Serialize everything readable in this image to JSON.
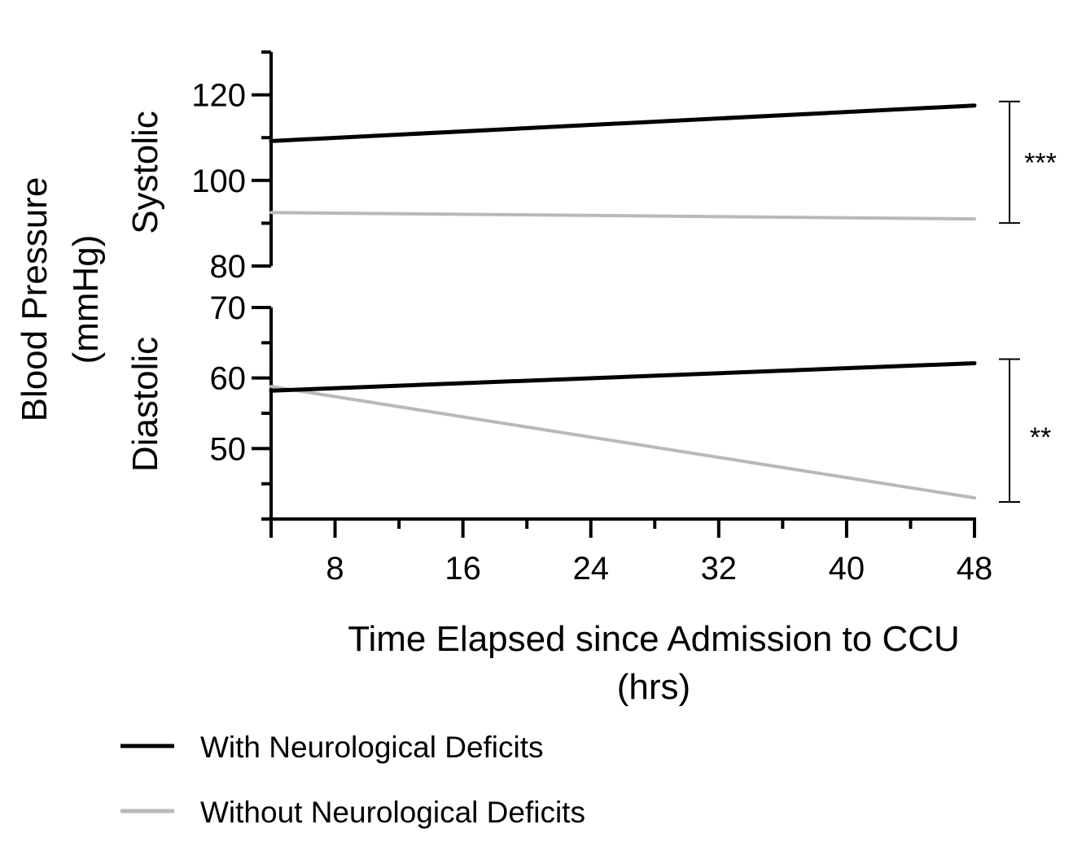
{
  "chart_data": {
    "type": "line",
    "xlabel_line1": "Time Elapsed since Admission to CCU",
    "xlabel_line2": "(hrs)",
    "ylabel_line1": "Blood Pressure",
    "ylabel_line2": "(mmHg)",
    "xlim": [
      4,
      48
    ],
    "x_ticks": [
      8,
      16,
      24,
      32,
      40,
      48
    ],
    "x_tick_labels": [
      "8",
      "16",
      "24",
      "32",
      "40",
      "48"
    ],
    "panels": [
      {
        "name": "systolic",
        "label": "Systolic",
        "ylim": [
          80,
          130
        ],
        "y_ticks": [
          80,
          100,
          120
        ],
        "y_tick_labels": [
          "80",
          "100",
          "120"
        ],
        "series": [
          {
            "name": "With Neurological Deficits",
            "color": "#000000",
            "x": [
              4,
              48
            ],
            "values": [
              109.2,
              117.5
            ]
          },
          {
            "name": "Without Neurological Deficits",
            "color": "#b9b9bd",
            "x": [
              4,
              48
            ],
            "values": [
              92.5,
              91.0
            ]
          }
        ],
        "significance": "***"
      },
      {
        "name": "diastolic",
        "label": "Diastolic",
        "ylim": [
          40,
          70
        ],
        "y_ticks": [
          50,
          60,
          70
        ],
        "y_tick_labels": [
          "50",
          "60",
          "70"
        ],
        "series": [
          {
            "name": "With Neurological Deficits",
            "color": "#000000",
            "x": [
              4,
              48
            ],
            "values": [
              58.2,
              62.1
            ]
          },
          {
            "name": "Without Neurological Deficits",
            "color": "#b9b9bd",
            "x": [
              4,
              48
            ],
            "values": [
              58.8,
              43.0
            ]
          }
        ],
        "significance": "**"
      }
    ],
    "legend": [
      {
        "label": "With Neurological Deficits",
        "color": "#000000"
      },
      {
        "label": "Without Neurological Deficits",
        "color": "#b9b9bd"
      }
    ]
  }
}
